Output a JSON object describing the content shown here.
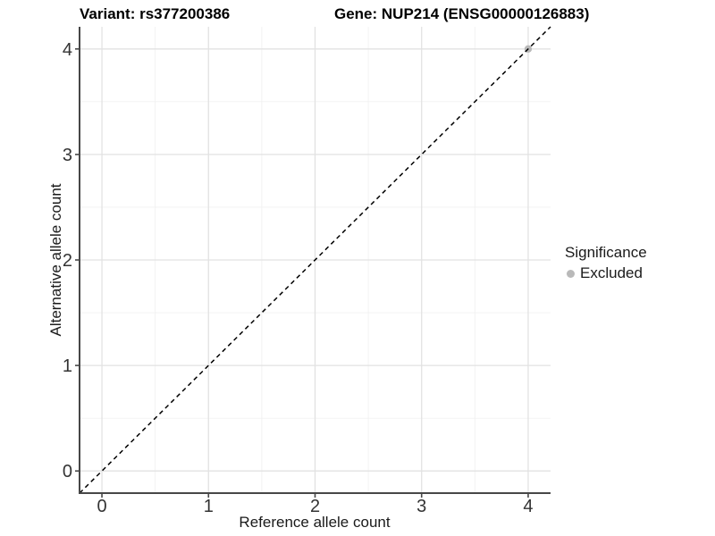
{
  "titles": {
    "left": "Variant: rs377200386",
    "right": "Gene: NUP214 (ENSG00000126883)"
  },
  "legend": {
    "title": "Significance",
    "items": [
      {
        "label": "Excluded",
        "color": "#b9b9b9"
      }
    ]
  },
  "chart_data": {
    "type": "scatter",
    "title": "Variant: rs377200386 / Gene: NUP214 (ENSG00000126883)",
    "xlabel": "Reference allele count",
    "ylabel": "Alternative allele count",
    "xlim": [
      -0.21,
      4.21
    ],
    "ylim": [
      -0.21,
      4.21
    ],
    "x_ticks": [
      0,
      1,
      2,
      3,
      4
    ],
    "y_ticks": [
      0,
      1,
      2,
      3,
      4
    ],
    "x_minor": [
      0.5,
      1.5,
      2.5,
      3.5
    ],
    "y_minor": [
      0.5,
      1.5,
      2.5,
      3.5
    ],
    "grid": {
      "on": true,
      "major_color": "#e2e2e2",
      "minor_color": "#f1f1f1"
    },
    "axis_line_color": "#474747",
    "tick_color": "#474747",
    "reference_line": {
      "type": "identity",
      "slope": 1,
      "intercept": 0,
      "style": "dashed",
      "color": "#000000"
    },
    "series": [
      {
        "name": "Excluded",
        "color": "#b9b9b9",
        "points": [
          {
            "x": 4,
            "y": 4
          }
        ]
      }
    ],
    "legend_position": "right",
    "legend_title": "Significance"
  }
}
